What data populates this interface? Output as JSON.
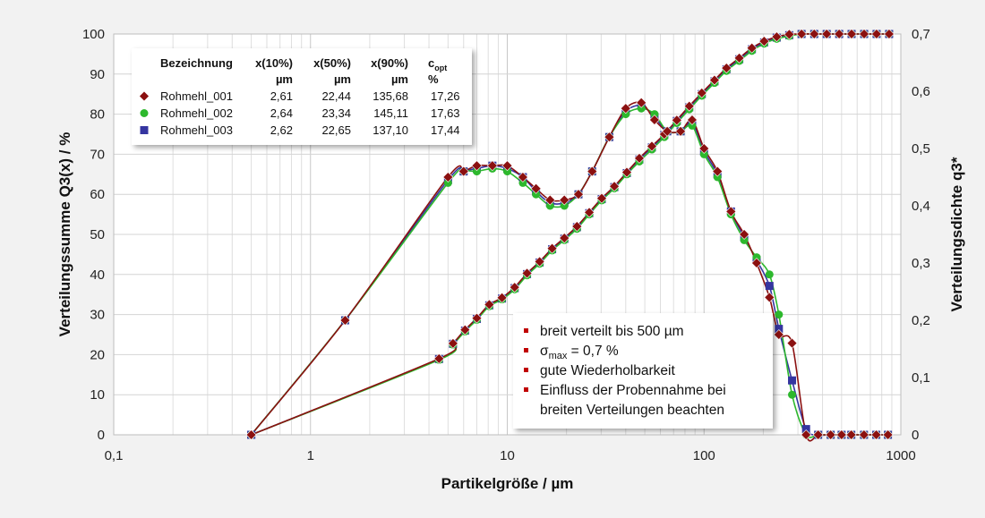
{
  "chart_data": {
    "type": "line",
    "title": "",
    "xlabel": "Partikelgröße / µm",
    "ylabel": "Verteilungssumme Q3(x) / %",
    "y2label": "Verteilungsdichte q3*",
    "xscale": "log",
    "xlim": [
      0.1,
      1000
    ],
    "ylim": [
      0,
      100
    ],
    "y2lim": [
      0,
      0.7
    ],
    "grid": true,
    "x_ticks": [
      {
        "value": 0.1,
        "label": "0,1"
      },
      {
        "value": 1,
        "label": "1"
      },
      {
        "value": 10,
        "label": "10"
      },
      {
        "value": 100,
        "label": "100"
      },
      {
        "value": 1000,
        "label": "1000"
      }
    ],
    "y_ticks": [
      {
        "value": 0,
        "label": "0"
      },
      {
        "value": 10,
        "label": "10"
      },
      {
        "value": 20,
        "label": "20"
      },
      {
        "value": 30,
        "label": "30"
      },
      {
        "value": 40,
        "label": "40"
      },
      {
        "value": 50,
        "label": "50"
      },
      {
        "value": 60,
        "label": "60"
      },
      {
        "value": 70,
        "label": "70"
      },
      {
        "value": 80,
        "label": "80"
      },
      {
        "value": 90,
        "label": "90"
      },
      {
        "value": 100,
        "label": "100"
      }
    ],
    "y2_ticks": [
      {
        "value": 0,
        "label": "0"
      },
      {
        "value": 0.1,
        "label": "0,1"
      },
      {
        "value": 0.2,
        "label": "0,2"
      },
      {
        "value": 0.3,
        "label": "0,3"
      },
      {
        "value": 0.4,
        "label": "0,4"
      },
      {
        "value": 0.5,
        "label": "0,5"
      },
      {
        "value": 0.6,
        "label": "0,6"
      },
      {
        "value": 0.7,
        "label": "0,7"
      }
    ],
    "legend": {
      "placement": "top-left",
      "headers": {
        "name": "Bezeichnung",
        "x10": "x(10%)",
        "x10_unit": "µm",
        "x50": "x(50%)",
        "x50_unit": "µm",
        "x90": "x(90%)",
        "x90_unit": "µm",
        "copt": "c",
        "copt_sub": "opt",
        "copt_unit": "%"
      },
      "rows": [
        {
          "name": "Rohmehl_001",
          "x10": "2,61",
          "x50": "22,44",
          "x90": "135,68",
          "copt": "17,26"
        },
        {
          "name": "Rohmehl_002",
          "x10": "2,64",
          "x50": "23,34",
          "x90": "145,11",
          "copt": "17,63"
        },
        {
          "name": "Rohmehl_003",
          "x10": "2,62",
          "x50": "22,65",
          "x90": "137,10",
          "copt": "17,44"
        }
      ]
    },
    "series": [
      {
        "name": "Rohmehl_001",
        "color": "#8b1010",
        "marker": "diamond",
        "cumulative": {
          "x": [
            0.5,
            4.5,
            5.3,
            6.1,
            7,
            8.1,
            9.4,
            10.9,
            12.6,
            14.6,
            16.9,
            19.5,
            22.6,
            26.1,
            30.2,
            35,
            40.5,
            46.9,
            54.3,
            62.8,
            72.7,
            84.1,
            97.4,
            113,
            130,
            151,
            175,
            202,
            234,
            271,
            313,
            363,
            420,
            486,
            562,
            651,
            753,
            872
          ],
          "y": [
            0,
            19,
            22.8,
            26.2,
            29.1,
            32.5,
            34.2,
            36.8,
            40.3,
            43.2,
            46.5,
            49.1,
            52,
            55.5,
            59,
            62,
            65.5,
            69,
            72,
            75,
            78.5,
            82,
            85.3,
            88.5,
            91.5,
            94,
            96.5,
            98.2,
            99.3,
            99.9,
            100,
            100,
            100,
            100,
            100,
            100,
            100,
            100
          ]
        },
        "density": {
          "x": [
            0.5,
            1.5,
            5,
            6,
            7,
            8.4,
            10,
            12,
            14,
            16.5,
            19.5,
            23,
            27,
            33,
            40,
            48,
            56,
            65,
            76,
            87,
            100,
            117,
            137,
            160,
            185,
            215,
            240,
            280,
            330,
            380,
            440,
            500,
            560,
            650,
            750,
            860
          ],
          "y": [
            0,
            0.2,
            0.45,
            0.46,
            0.47,
            0.47,
            0.47,
            0.45,
            0.43,
            0.41,
            0.41,
            0.42,
            0.46,
            0.52,
            0.57,
            0.58,
            0.55,
            0.53,
            0.53,
            0.55,
            0.5,
            0.46,
            0.39,
            0.35,
            0.3,
            0.24,
            0.175,
            0.16,
            0,
            0,
            0,
            0,
            0,
            0,
            0,
            0
          ]
        }
      },
      {
        "name": "Rohmehl_002",
        "color": "#2db82d",
        "marker": "circle",
        "cumulative": {
          "x": [
            0.5,
            4.5,
            5.3,
            6.1,
            7,
            8.1,
            9.4,
            10.9,
            12.6,
            14.6,
            16.9,
            19.5,
            22.6,
            26.1,
            30.2,
            35,
            40.5,
            46.9,
            54.3,
            62.8,
            72.7,
            84.1,
            97.4,
            113,
            130,
            151,
            175,
            202,
            234,
            271,
            313,
            363,
            420,
            486,
            562,
            651,
            753,
            872
          ],
          "y": [
            0,
            18.7,
            22.5,
            25.8,
            28.7,
            32.1,
            33.8,
            36.3,
            39.8,
            42.7,
            46,
            48.6,
            51.4,
            55,
            58.5,
            61.5,
            65,
            68.2,
            71.2,
            74.3,
            77.8,
            81.2,
            84.6,
            87.8,
            90.8,
            93.3,
            95.8,
            97.6,
            98.8,
            99.5,
            100,
            100,
            100,
            100,
            100,
            100,
            100,
            100
          ]
        },
        "density": {
          "x": [
            0.5,
            1.5,
            5,
            6,
            7,
            8.4,
            10,
            12,
            14,
            16.5,
            19.5,
            23,
            27,
            33,
            40,
            48,
            56,
            65,
            76,
            87,
            100,
            117,
            137,
            160,
            185,
            215,
            240,
            280,
            330,
            380,
            440,
            500,
            560,
            650,
            750,
            860
          ],
          "y": [
            0,
            0.2,
            0.44,
            0.46,
            0.46,
            0.465,
            0.46,
            0.44,
            0.42,
            0.4,
            0.4,
            0.42,
            0.46,
            0.52,
            0.56,
            0.57,
            0.56,
            0.53,
            0.53,
            0.54,
            0.49,
            0.45,
            0.385,
            0.34,
            0.31,
            0.28,
            0.21,
            0.07,
            0,
            0,
            0,
            0,
            0,
            0,
            0,
            0
          ]
        }
      },
      {
        "name": "Rohmehl_003",
        "color": "#3535a0",
        "marker": "square",
        "cumulative": {
          "x": [
            0.5,
            4.5,
            5.3,
            6.1,
            7,
            8.1,
            9.4,
            10.9,
            12.6,
            14.6,
            16.9,
            19.5,
            22.6,
            26.1,
            30.2,
            35,
            40.5,
            46.9,
            54.3,
            62.8,
            72.7,
            84.1,
            97.4,
            113,
            130,
            151,
            175,
            202,
            234,
            271,
            313,
            363,
            420,
            486,
            562,
            651,
            753,
            872
          ],
          "y": [
            0,
            18.9,
            22.7,
            26,
            28.9,
            32.3,
            34,
            36.6,
            40.1,
            43,
            46.3,
            48.9,
            51.8,
            55.3,
            58.8,
            61.8,
            65.3,
            68.7,
            71.7,
            74.8,
            78.3,
            81.7,
            85,
            88.2,
            91.2,
            93.7,
            96.2,
            97.9,
            99.1,
            99.7,
            100,
            100,
            100,
            100,
            100,
            100,
            100,
            100
          ]
        },
        "density": {
          "x": [
            0.5,
            1.5,
            5,
            6,
            7,
            8.4,
            10,
            12,
            14,
            16.5,
            19.5,
            23,
            27,
            33,
            40,
            48,
            56,
            65,
            76,
            87,
            100,
            117,
            137,
            160,
            185,
            215,
            240,
            280,
            330,
            380,
            440,
            500,
            560,
            650,
            750,
            860
          ],
          "y": [
            0,
            0.2,
            0.445,
            0.46,
            0.465,
            0.47,
            0.465,
            0.45,
            0.425,
            0.405,
            0.405,
            0.42,
            0.46,
            0.52,
            0.565,
            0.575,
            0.555,
            0.53,
            0.53,
            0.545,
            0.495,
            0.455,
            0.39,
            0.345,
            0.305,
            0.26,
            0.185,
            0.095,
            0.01,
            0,
            0,
            0,
            0,
            0,
            0,
            0
          ]
        }
      }
    ]
  },
  "annotation": {
    "bullet_color": "#c00000",
    "lines": [
      {
        "parts": [
          {
            "t": "breit verteilt bis 500 µm"
          }
        ]
      },
      {
        "parts": [
          {
            "t": "σ"
          },
          {
            "t": "max",
            "sub": true
          },
          {
            "t": " = 0,7 %"
          }
        ]
      },
      {
        "parts": [
          {
            "t": "gute Wiederholbarkeit"
          }
        ]
      },
      {
        "parts": [
          {
            "t": "Einfluss der Probennahme bei"
          }
        ]
      },
      {
        "parts": [
          {
            "t": "breiten Verteilungen beachten"
          }
        ],
        "no_bullet": true
      }
    ]
  }
}
